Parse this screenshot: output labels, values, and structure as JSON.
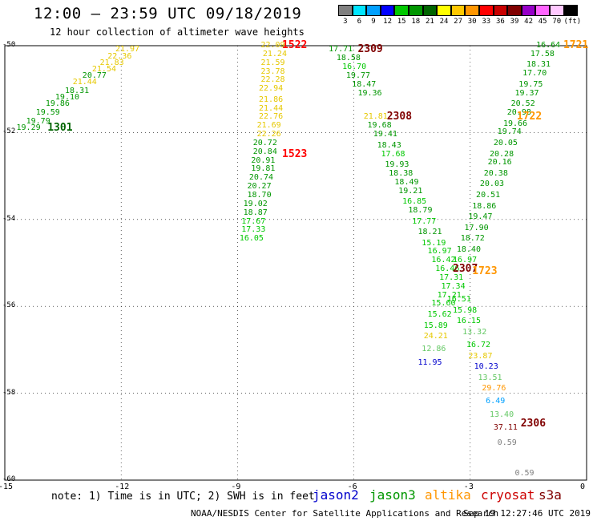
{
  "title": "12:00 – 23:59 UTC 09/18/2019",
  "subtitle": "12 hour collection of altimeter wave heights",
  "legend": {
    "labels": [
      "3",
      "6",
      "9",
      "12",
      "15",
      "18",
      "21",
      "24",
      "27",
      "30",
      "33",
      "36",
      "39",
      "42",
      "45",
      "70",
      "(ft)"
    ],
    "colors": [
      "#808080",
      "#00e5ff",
      "#00a0ff",
      "#0000ff",
      "#00c800",
      "#009600",
      "#006400",
      "#ffff00",
      "#ffc800",
      "#ff9600",
      "#ff0000",
      "#c80000",
      "#800000",
      "#9600c8",
      "#ff64ff",
      "#ffc8ff",
      "#000000"
    ]
  },
  "axes": {
    "y_ticks": [
      "-50",
      "-52",
      "-54",
      "-56",
      "-58",
      "-60"
    ],
    "x_ticks": [
      "-15",
      "-12",
      "-9",
      "-6",
      "-3",
      "0"
    ]
  },
  "note": "note: 1) Time is in UTC; 2) SWH is in feet",
  "satellites": [
    {
      "name": "jason2",
      "color": "#0000cc"
    },
    {
      "name": "jason3",
      "color": "#009600"
    },
    {
      "name": "altika",
      "color": "#ff9600"
    },
    {
      "name": "cryosat",
      "color": "#cc0000"
    },
    {
      "name": "s3a",
      "color": "#800000"
    }
  ],
  "credit": "NOAA/NESDIS Center for Satellite Applications and Research",
  "timestamp": "Sep 19 12:27:46 UTC 2019",
  "passes": [
    {
      "label": "1301",
      "lon": -13.9,
      "lat": -51.9,
      "color": "#006400"
    },
    {
      "label": "1522",
      "lon": -7.85,
      "lat": -50.0,
      "color": "#ff0000"
    },
    {
      "label": "1523",
      "lon": -7.85,
      "lat": -52.5,
      "color": "#ff0000"
    },
    {
      "label": "2309",
      "lon": -5.9,
      "lat": -50.1,
      "color": "#800000"
    },
    {
      "label": "2308",
      "lon": -5.15,
      "lat": -51.65,
      "color": "#800000"
    },
    {
      "label": "2307",
      "lon": -3.45,
      "lat": -55.15,
      "color": "#800000"
    },
    {
      "label": "1723",
      "lon": -2.95,
      "lat": -55.2,
      "color": "#ff9600"
    },
    {
      "label": "1722",
      "lon": -1.8,
      "lat": -51.65,
      "color": "#ff9600"
    },
    {
      "label": "1721",
      "lon": -0.6,
      "lat": -50.0,
      "color": "#ff9600"
    },
    {
      "label": "2306",
      "lon": -1.7,
      "lat": -58.7,
      "color": "#800000"
    }
  ],
  "tracks": [
    {
      "name": "track-1301",
      "points": [
        {
          "v": "19.29",
          "lon": -14.7,
          "lat": -51.9,
          "c": "#009600"
        },
        {
          "v": "19.79",
          "lon": -14.45,
          "lat": -51.75,
          "c": "#009600"
        },
        {
          "v": "19.59",
          "lon": -14.2,
          "lat": -51.55,
          "c": "#009600"
        },
        {
          "v": "19.86",
          "lon": -13.95,
          "lat": -51.35,
          "c": "#009600"
        },
        {
          "v": "19.10",
          "lon": -13.7,
          "lat": -51.2,
          "c": "#009600"
        },
        {
          "v": "18.31",
          "lon": -13.45,
          "lat": -51.05,
          "c": "#009600"
        },
        {
          "v": "21.44",
          "lon": -13.25,
          "lat": -50.85,
          "c": "#e6c800"
        },
        {
          "v": "20.77",
          "lon": -13.0,
          "lat": -50.7,
          "c": "#009600"
        },
        {
          "v": "21.54",
          "lon": -12.75,
          "lat": -50.55,
          "c": "#e6c800"
        },
        {
          "v": "21.83",
          "lon": -12.55,
          "lat": -50.4,
          "c": "#e6c800"
        },
        {
          "v": "22.36",
          "lon": -12.35,
          "lat": -50.25,
          "c": "#e6c800"
        },
        {
          "v": "21.97",
          "lon": -12.15,
          "lat": -50.1,
          "c": "#e6c800"
        }
      ]
    },
    {
      "name": "track-1522",
      "points": [
        {
          "v": "22.09",
          "lon": -8.4,
          "lat": -50.0,
          "c": "#e6c800"
        },
        {
          "v": "21.24",
          "lon": -8.35,
          "lat": -50.2,
          "c": "#e6c800"
        },
        {
          "v": "21.59",
          "lon": -8.4,
          "lat": -50.4,
          "c": "#e6c800"
        },
        {
          "v": "23.78",
          "lon": -8.4,
          "lat": -50.6,
          "c": "#e6c800"
        },
        {
          "v": "22.28",
          "lon": -8.4,
          "lat": -50.8,
          "c": "#e6c800"
        },
        {
          "v": "22.94",
          "lon": -8.45,
          "lat": -51.0,
          "c": "#e6c800"
        },
        {
          "v": "21.86",
          "lon": -8.45,
          "lat": -51.25,
          "c": "#e6c800"
        },
        {
          "v": "21.44",
          "lon": -8.45,
          "lat": -51.45,
          "c": "#e6c800"
        },
        {
          "v": "22.76",
          "lon": -8.45,
          "lat": -51.65,
          "c": "#e6c800"
        },
        {
          "v": "21.69",
          "lon": -8.5,
          "lat": -51.85,
          "c": "#e6c800"
        },
        {
          "v": "22.26",
          "lon": -8.5,
          "lat": -52.05,
          "c": "#e6c800"
        },
        {
          "v": "20.72",
          "lon": -8.6,
          "lat": -52.25,
          "c": "#009600"
        },
        {
          "v": "20.84",
          "lon": -8.6,
          "lat": -52.45,
          "c": "#009600"
        },
        {
          "v": "20.91",
          "lon": -8.65,
          "lat": -52.65,
          "c": "#009600"
        },
        {
          "v": "19.81",
          "lon": -8.65,
          "lat": -52.85,
          "c": "#009600"
        },
        {
          "v": "20.74",
          "lon": -8.7,
          "lat": -53.05,
          "c": "#009600"
        },
        {
          "v": "20.27",
          "lon": -8.75,
          "lat": -53.25,
          "c": "#009600"
        },
        {
          "v": "18.70",
          "lon": -8.75,
          "lat": -53.45,
          "c": "#009600"
        },
        {
          "v": "19.02",
          "lon": -8.85,
          "lat": -53.65,
          "c": "#009600"
        },
        {
          "v": "18.87",
          "lon": -8.85,
          "lat": -53.85,
          "c": "#009600"
        },
        {
          "v": "17.67",
          "lon": -8.9,
          "lat": -54.05,
          "c": "#00c800"
        },
        {
          "v": "17.33",
          "lon": -8.9,
          "lat": -54.25,
          "c": "#00c800"
        },
        {
          "v": "16.05",
          "lon": -8.95,
          "lat": -54.45,
          "c": "#00c800"
        }
      ]
    },
    {
      "name": "track-2309",
      "points": [
        {
          "v": "17.71",
          "lon": -6.65,
          "lat": -50.1,
          "c": "#009600"
        },
        {
          "v": "18.58",
          "lon": -6.45,
          "lat": -50.3,
          "c": "#009600"
        },
        {
          "v": "16.70",
          "lon": -6.3,
          "lat": -50.5,
          "c": "#00c800"
        },
        {
          "v": "19.77",
          "lon": -6.2,
          "lat": -50.7,
          "c": "#009600"
        },
        {
          "v": "18.47",
          "lon": -6.05,
          "lat": -50.9,
          "c": "#009600"
        },
        {
          "v": "19.36",
          "lon": -5.9,
          "lat": -51.1,
          "c": "#009600"
        }
      ]
    },
    {
      "name": "track-2308",
      "points": [
        {
          "v": "21.81",
          "lon": -5.75,
          "lat": -51.65,
          "c": "#e6c800"
        },
        {
          "v": "19.68",
          "lon": -5.65,
          "lat": -51.85,
          "c": "#009600"
        },
        {
          "v": "19.41",
          "lon": -5.5,
          "lat": -52.05,
          "c": "#009600"
        },
        {
          "v": "18.43",
          "lon": -5.4,
          "lat": -52.3,
          "c": "#009600"
        },
        {
          "v": "17.68",
          "lon": -5.3,
          "lat": -52.5,
          "c": "#00c800"
        },
        {
          "v": "19.93",
          "lon": -5.2,
          "lat": -52.75,
          "c": "#009600"
        },
        {
          "v": "18.38",
          "lon": -5.1,
          "lat": -52.95,
          "c": "#009600"
        },
        {
          "v": "18.49",
          "lon": -4.95,
          "lat": -53.15,
          "c": "#009600"
        },
        {
          "v": "19.21",
          "lon": -4.85,
          "lat": -53.35,
          "c": "#009600"
        },
        {
          "v": "16.85",
          "lon": -4.75,
          "lat": -53.6,
          "c": "#00c800"
        },
        {
          "v": "18.79",
          "lon": -4.6,
          "lat": -53.8,
          "c": "#009600"
        },
        {
          "v": "17.77",
          "lon": -4.5,
          "lat": -54.05,
          "c": "#00c800"
        },
        {
          "v": "18.21",
          "lon": -4.35,
          "lat": -54.3,
          "c": "#009600"
        },
        {
          "v": "15.19",
          "lon": -4.25,
          "lat": -54.55,
          "c": "#00c800"
        },
        {
          "v": "16.97",
          "lon": -4.1,
          "lat": -54.75,
          "c": "#00c800"
        },
        {
          "v": "16.42",
          "lon": -4.0,
          "lat": -54.95,
          "c": "#00c800"
        },
        {
          "v": "16.46",
          "lon": -3.9,
          "lat": -55.15,
          "c": "#00c800"
        },
        {
          "v": "17.31",
          "lon": -3.8,
          "lat": -55.35,
          "c": "#00c800"
        },
        {
          "v": "17.34",
          "lon": -3.75,
          "lat": -55.55,
          "c": "#00c800"
        },
        {
          "v": "17.21",
          "lon": -3.85,
          "lat": -55.75,
          "c": "#00c800"
        },
        {
          "v": "15.60",
          "lon": -4.0,
          "lat": -55.95,
          "c": "#00c800"
        },
        {
          "v": "15.62",
          "lon": -4.1,
          "lat": -56.2,
          "c": "#00c800"
        },
        {
          "v": "15.89",
          "lon": -4.2,
          "lat": -56.45,
          "c": "#00c800"
        }
      ]
    },
    {
      "name": "track-altika-mid",
      "points": [
        {
          "v": "24.21",
          "lon": -4.2,
          "lat": -56.7,
          "c": "#e6c800"
        },
        {
          "v": "12.86",
          "lon": -4.25,
          "lat": -57.0,
          "c": "#64c864"
        },
        {
          "v": "11.95",
          "lon": -4.35,
          "lat": -57.3,
          "c": "#0000cc"
        }
      ]
    },
    {
      "name": "track-1722",
      "points": [
        {
          "v": "16.64",
          "lon": -1.3,
          "lat": -50.0,
          "c": "#009600"
        },
        {
          "v": "17.58",
          "lon": -1.45,
          "lat": -50.2,
          "c": "#009600"
        },
        {
          "v": "18.31",
          "lon": -1.55,
          "lat": -50.45,
          "c": "#009600"
        },
        {
          "v": "17.70",
          "lon": -1.65,
          "lat": -50.65,
          "c": "#009600"
        },
        {
          "v": "19.75",
          "lon": -1.75,
          "lat": -50.9,
          "c": "#009600"
        },
        {
          "v": "19.37",
          "lon": -1.85,
          "lat": -51.1,
          "c": "#009600"
        },
        {
          "v": "20.52",
          "lon": -1.95,
          "lat": -51.35,
          "c": "#009600"
        },
        {
          "v": "20.98",
          "lon": -2.05,
          "lat": -51.55,
          "c": "#009600"
        },
        {
          "v": "19.66",
          "lon": -2.15,
          "lat": -51.8,
          "c": "#009600"
        },
        {
          "v": "19.74",
          "lon": -2.3,
          "lat": -52.0,
          "c": "#009600"
        },
        {
          "v": "20.05",
          "lon": -2.4,
          "lat": -52.25,
          "c": "#009600"
        },
        {
          "v": "20.28",
          "lon": -2.5,
          "lat": -52.5,
          "c": "#009600"
        },
        {
          "v": "20.16",
          "lon": -2.55,
          "lat": -52.7,
          "c": "#009600"
        },
        {
          "v": "20.38",
          "lon": -2.65,
          "lat": -52.95,
          "c": "#009600"
        },
        {
          "v": "20.03",
          "lon": -2.75,
          "lat": -53.2,
          "c": "#009600"
        },
        {
          "v": "20.51",
          "lon": -2.85,
          "lat": -53.45,
          "c": "#009600"
        },
        {
          "v": "18.86",
          "lon": -2.95,
          "lat": -53.7,
          "c": "#009600"
        },
        {
          "v": "19.47",
          "lon": -3.05,
          "lat": -53.95,
          "c": "#009600"
        },
        {
          "v": "17.90",
          "lon": -3.15,
          "lat": -54.2,
          "c": "#009600"
        },
        {
          "v": "18.72",
          "lon": -3.25,
          "lat": -54.45,
          "c": "#009600"
        },
        {
          "v": "18.40",
          "lon": -3.35,
          "lat": -54.7,
          "c": "#009600"
        },
        {
          "v": "16.97",
          "lon": -3.45,
          "lat": -54.95,
          "c": "#00c800"
        },
        {
          "v": "16.51",
          "lon": -3.6,
          "lat": -55.85,
          "c": "#00c800"
        },
        {
          "v": "15.98",
          "lon": -3.45,
          "lat": -56.1,
          "c": "#00c800"
        },
        {
          "v": "16.15",
          "lon": -3.35,
          "lat": -56.35,
          "c": "#00c800"
        },
        {
          "v": "13.32",
          "lon": -3.2,
          "lat": -56.6,
          "c": "#64c864"
        },
        {
          "v": "16.72",
          "lon": -3.1,
          "lat": -56.9,
          "c": "#00c800"
        },
        {
          "v": "23.87",
          "lon": -3.05,
          "lat": -57.15,
          "c": "#e6c800"
        },
        {
          "v": "10.23",
          "lon": -2.9,
          "lat": -57.4,
          "c": "#0000cc"
        },
        {
          "v": "13.51",
          "lon": -2.8,
          "lat": -57.65,
          "c": "#64c864"
        },
        {
          "v": "29.76",
          "lon": -2.7,
          "lat": -57.9,
          "c": "#ff9600"
        },
        {
          "v": "6.49",
          "lon": -2.6,
          "lat": -58.2,
          "c": "#00a0ff"
        },
        {
          "v": "13.40",
          "lon": -2.5,
          "lat": -58.5,
          "c": "#64c864"
        },
        {
          "v": "37.11",
          "lon": -2.4,
          "lat": -58.8,
          "c": "#800000"
        },
        {
          "v": "0.59",
          "lon": -2.3,
          "lat": -59.15,
          "c": "#808080"
        },
        {
          "v": "0.59",
          "lon": -1.85,
          "lat": -59.85,
          "c": "#808080"
        }
      ]
    }
  ]
}
